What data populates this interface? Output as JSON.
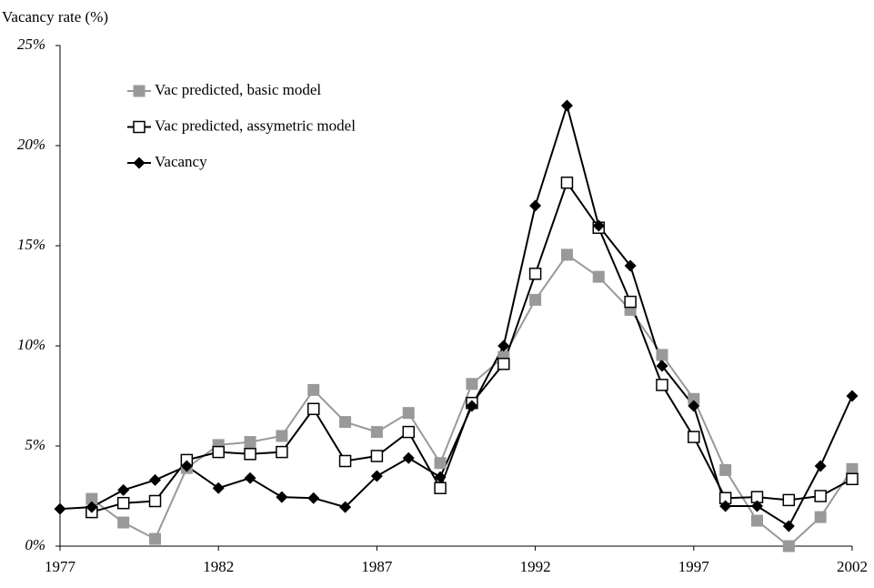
{
  "chart_data": {
    "type": "line",
    "y_axis_label": "Vacancy rate (%)",
    "x": [
      1977,
      1978,
      1979,
      1980,
      1981,
      1982,
      1983,
      1984,
      1985,
      1986,
      1987,
      1988,
      1989,
      1990,
      1991,
      1992,
      1993,
      1994,
      1995,
      1996,
      1997,
      1998,
      1999,
      2000,
      2001,
      2002
    ],
    "series": [
      {
        "name": "Vac predicted, basic model",
        "color": "#999999",
        "marker": "square",
        "values": [
          null,
          2.36,
          1.18,
          0.36,
          3.9,
          5.05,
          5.2,
          5.5,
          7.8,
          6.2,
          5.7,
          6.65,
          4.15,
          8.1,
          9.45,
          12.3,
          14.55,
          13.45,
          11.8,
          9.55,
          7.35,
          3.8,
          1.27,
          0,
          1.45,
          3.85
        ]
      },
      {
        "name": "Vac predicted, assymetric model",
        "color": "#000000",
        "marker": "open-square",
        "values": [
          null,
          1.7,
          2.15,
          2.25,
          4.3,
          4.7,
          4.6,
          4.7,
          6.85,
          4.25,
          4.5,
          5.7,
          2.9,
          7.15,
          9.1,
          13.6,
          18.15,
          15.9,
          12.2,
          8.05,
          5.45,
          2.4,
          2.45,
          2.3,
          2.5,
          3.35
        ]
      },
      {
        "name": "Vacancy",
        "color": "#000000",
        "marker": "diamond",
        "values": [
          1.86,
          1.95,
          2.8,
          3.3,
          4.0,
          2.9,
          3.4,
          2.45,
          2.4,
          1.95,
          3.5,
          4.4,
          3.45,
          7.0,
          10.0,
          17.0,
          22.0,
          16.0,
          14.0,
          9.0,
          7.0,
          2.0,
          2.0,
          1.0,
          4.0,
          7.5
        ]
      }
    ],
    "xlim": [
      1977,
      2002
    ],
    "xticks": [
      1977,
      1982,
      1987,
      1992,
      1997,
      2002
    ],
    "ylim": [
      0,
      25
    ],
    "yticks": [
      {
        "value": 0,
        "label": "0%"
      },
      {
        "value": 5,
        "label": "5%"
      },
      {
        "value": 10,
        "label": "10%"
      },
      {
        "value": 15,
        "label": "15%"
      },
      {
        "value": 20,
        "label": "20%"
      },
      {
        "value": 25,
        "label": "25%"
      }
    ],
    "grid": false
  }
}
